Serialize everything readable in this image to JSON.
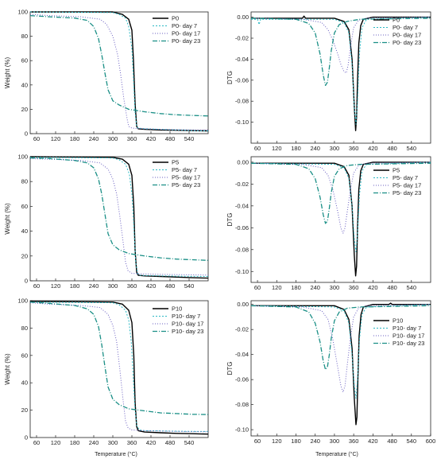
{
  "figure": {
    "x_axis_title": "Temperature (°C)"
  },
  "chart_data": [
    {
      "type": "line",
      "ylabel": "Weight (%)",
      "xlim": [
        40,
        600
      ],
      "ylim": [
        0,
        100
      ],
      "yticks": [
        "0",
        "20",
        "40",
        "60",
        "80",
        "100"
      ],
      "xticks": [
        "60",
        "120",
        "180",
        "240",
        "300",
        "360",
        "420",
        "480",
        "540"
      ],
      "series": [
        {
          "name": "P0",
          "x": [
            40,
            300,
            330,
            350,
            360,
            365,
            370,
            375,
            380,
            400,
            450,
            500,
            550,
            600
          ],
          "y": [
            100,
            100,
            98,
            94,
            85,
            60,
            25,
            6,
            4,
            3.5,
            3,
            2.8,
            2.5,
            2.3
          ]
        },
        {
          "name": "P0- day 7",
          "x": [
            40,
            300,
            320,
            340,
            350,
            360,
            365,
            370,
            375,
            380,
            400,
            450,
            500,
            550,
            600
          ],
          "y": [
            100,
            99.5,
            98,
            95,
            88,
            70,
            45,
            18,
            6,
            4.5,
            4,
            3.5,
            3,
            2.5,
            2.2
          ]
        },
        {
          "name": "P0- day 17",
          "x": [
            40,
            100,
            200,
            260,
            280,
            300,
            315,
            325,
            335,
            345,
            350,
            360,
            400,
            450,
            500,
            550,
            600
          ],
          "y": [
            98,
            97,
            96,
            94,
            90,
            80,
            65,
            48,
            28,
            12,
            6,
            4.5,
            4,
            3.5,
            3.3,
            3.1,
            3
          ]
        },
        {
          "name": "P0- day 23",
          "x": [
            40,
            100,
            180,
            220,
            240,
            255,
            265,
            275,
            285,
            300,
            320,
            350,
            400,
            450,
            500,
            550,
            600
          ],
          "y": [
            97,
            96,
            95,
            93,
            88,
            78,
            65,
            50,
            36,
            27,
            23.5,
            20,
            18,
            16.5,
            15.5,
            15,
            14.5
          ]
        }
      ]
    },
    {
      "type": "line",
      "ylabel": "DTG",
      "xlim": [
        40,
        600
      ],
      "ylim": [
        -0.12,
        0.005
      ],
      "yticks": [
        "0.00",
        "-0.02",
        "-0.04",
        "-0.06",
        "-0.08",
        "-0.10"
      ],
      "xticks": [
        "60",
        "120",
        "180",
        "240",
        "300",
        "360",
        "420",
        "480",
        "540"
      ],
      "series": [
        {
          "name": "P0",
          "x": [
            40,
            200,
            205,
            210,
            300,
            330,
            345,
            355,
            362,
            366,
            369,
            372,
            376,
            382,
            390,
            420,
            600
          ],
          "y": [
            -0.001,
            -0.001,
            0.001,
            -0.001,
            -0.001,
            -0.004,
            -0.012,
            -0.04,
            -0.085,
            -0.108,
            -0.095,
            -0.06,
            -0.025,
            -0.008,
            -0.002,
            0,
            0
          ]
        },
        {
          "name": "P0- day 7",
          "x": [
            40,
            60,
            65,
            70,
            300,
            330,
            345,
            355,
            362,
            367,
            372,
            378,
            386,
            400,
            600
          ],
          "y": [
            -0.002,
            -0.002,
            -0.007,
            -0.002,
            -0.002,
            -0.005,
            -0.015,
            -0.045,
            -0.085,
            -0.102,
            -0.08,
            -0.035,
            -0.01,
            -0.002,
            0
          ]
        },
        {
          "name": "P0- day 17",
          "x": [
            40,
            200,
            260,
            280,
            295,
            310,
            320,
            330,
            337,
            343,
            350,
            360,
            375,
            400,
            600
          ],
          "y": [
            -0.001,
            -0.002,
            -0.005,
            -0.012,
            -0.022,
            -0.035,
            -0.045,
            -0.052,
            -0.053,
            -0.045,
            -0.028,
            -0.01,
            -0.003,
            -0.001,
            0
          ]
        },
        {
          "name": "P0- day 23",
          "x": [
            40,
            180,
            220,
            240,
            255,
            265,
            272,
            278,
            284,
            290,
            300,
            315,
            340,
            380,
            600
          ],
          "y": [
            -0.001,
            -0.002,
            -0.006,
            -0.015,
            -0.035,
            -0.055,
            -0.065,
            -0.062,
            -0.048,
            -0.032,
            -0.015,
            -0.007,
            -0.004,
            -0.002,
            -0.001
          ]
        }
      ]
    },
    {
      "type": "line",
      "ylabel": "Weight (%)",
      "xlim": [
        40,
        600
      ],
      "ylim": [
        0,
        100
      ],
      "yticks": [
        "0",
        "20",
        "40",
        "60",
        "80",
        "100"
      ],
      "xticks": [
        "60",
        "120",
        "180",
        "240",
        "300",
        "360",
        "420",
        "480",
        "540"
      ],
      "series": [
        {
          "name": "P5",
          "x": [
            40,
            300,
            330,
            350,
            360,
            366,
            370,
            375,
            380,
            400,
            450,
            500,
            550,
            600
          ],
          "y": [
            100,
            99.5,
            98,
            94,
            85,
            60,
            25,
            7,
            4.5,
            4,
            3.5,
            3,
            2.5,
            2.2
          ]
        },
        {
          "name": "P5- day 7",
          "x": [
            40,
            300,
            320,
            340,
            352,
            360,
            366,
            372,
            378,
            385,
            400,
            450,
            500,
            550,
            600
          ],
          "y": [
            99.5,
            99,
            97.5,
            94,
            86,
            70,
            45,
            15,
            6,
            4.5,
            4.2,
            4,
            3.8,
            3.6,
            3.5
          ]
        },
        {
          "name": "P5- day 17",
          "x": [
            40,
            100,
            200,
            260,
            285,
            300,
            312,
            322,
            332,
            340,
            348,
            360,
            400,
            450,
            500,
            550,
            600
          ],
          "y": [
            98.5,
            98,
            97,
            95,
            90,
            82,
            70,
            52,
            32,
            15,
            8,
            6,
            5.5,
            5.2,
            5,
            4.8,
            4.6
          ]
        },
        {
          "name": "P5- day 23",
          "x": [
            40,
            100,
            180,
            220,
            240,
            255,
            265,
            275,
            285,
            300,
            320,
            350,
            400,
            450,
            500,
            550,
            600
          ],
          "y": [
            99,
            98.5,
            97,
            95,
            91,
            82,
            70,
            54,
            38,
            29,
            25,
            22,
            20,
            18.5,
            17.5,
            17,
            16.5
          ]
        }
      ]
    },
    {
      "type": "line",
      "ylabel": "DTG",
      "xlim": [
        40,
        600
      ],
      "ylim": [
        -0.11,
        0.005
      ],
      "yticks": [
        "0.00",
        "-0.02",
        "-0.04",
        "-0.06",
        "-0.08",
        "-0.10"
      ],
      "xticks": [
        "60",
        "120",
        "180",
        "240",
        "300",
        "360",
        "420",
        "480",
        "540"
      ],
      "series": [
        {
          "name": "P5",
          "x": [
            40,
            300,
            330,
            345,
            355,
            362,
            366,
            369,
            372,
            376,
            382,
            390,
            420,
            600
          ],
          "y": [
            -0.001,
            -0.001,
            -0.004,
            -0.012,
            -0.04,
            -0.085,
            -0.104,
            -0.095,
            -0.06,
            -0.025,
            -0.008,
            -0.002,
            0,
            0
          ]
        },
        {
          "name": "P5- day 7",
          "x": [
            40,
            300,
            330,
            345,
            355,
            362,
            367,
            372,
            378,
            386,
            400,
            600
          ],
          "y": [
            -0.001,
            -0.002,
            -0.005,
            -0.015,
            -0.04,
            -0.07,
            -0.082,
            -0.065,
            -0.03,
            -0.008,
            -0.002,
            0
          ]
        },
        {
          "name": "P5- day 17",
          "x": [
            40,
            200,
            260,
            280,
            295,
            310,
            320,
            327,
            333,
            340,
            350,
            360,
            375,
            400,
            600
          ],
          "y": [
            -0.001,
            -0.002,
            -0.005,
            -0.012,
            -0.025,
            -0.045,
            -0.06,
            -0.065,
            -0.06,
            -0.045,
            -0.025,
            -0.01,
            -0.003,
            -0.001,
            0
          ]
        },
        {
          "name": "P5- day 23",
          "x": [
            40,
            180,
            220,
            240,
            255,
            265,
            272,
            278,
            284,
            290,
            300,
            315,
            340,
            380,
            600
          ],
          "y": [
            -0.001,
            -0.002,
            -0.006,
            -0.015,
            -0.032,
            -0.048,
            -0.056,
            -0.054,
            -0.042,
            -0.028,
            -0.013,
            -0.006,
            -0.003,
            -0.002,
            -0.001
          ]
        }
      ]
    },
    {
      "type": "line",
      "ylabel": "Weight (%)",
      "xlim": [
        40,
        600
      ],
      "ylim": [
        0,
        100
      ],
      "yticks": [
        "0",
        "20",
        "40",
        "60",
        "80",
        "100"
      ],
      "xticks": [
        "60",
        "120",
        "180",
        "240",
        "300",
        "360",
        "420",
        "480",
        "540"
      ],
      "series": [
        {
          "name": "P10",
          "x": [
            40,
            300,
            330,
            350,
            360,
            366,
            370,
            375,
            380,
            400,
            450,
            500,
            550,
            600
          ],
          "y": [
            99.5,
            99,
            97.5,
            93,
            84,
            60,
            26,
            8,
            5,
            4,
            3.5,
            3,
            2.8,
            2.5
          ]
        },
        {
          "name": "P10- day 7",
          "x": [
            40,
            300,
            320,
            340,
            350,
            358,
            364,
            370,
            376,
            385,
            400,
            450,
            500,
            550,
            600
          ],
          "y": [
            99,
            98.5,
            97,
            93,
            86,
            70,
            45,
            20,
            8,
            5.5,
            5,
            4.8,
            4.6,
            4.5,
            4.4
          ]
        },
        {
          "name": "P10- day 17",
          "x": [
            40,
            100,
            200,
            260,
            285,
            300,
            312,
            322,
            332,
            340,
            348,
            360,
            400,
            450,
            500,
            550,
            600
          ],
          "y": [
            98.5,
            97.5,
            96.5,
            95,
            90,
            82,
            70,
            50,
            28,
            12,
            7,
            5.5,
            5,
            4.7,
            4.5,
            4.3,
            4.2
          ]
        },
        {
          "name": "P10- day 23",
          "x": [
            40,
            100,
            180,
            220,
            240,
            255,
            265,
            275,
            285,
            300,
            320,
            350,
            400,
            450,
            500,
            550,
            600
          ],
          "y": [
            99,
            98,
            96.5,
            94,
            90,
            81,
            68,
            52,
            37,
            28,
            24,
            21,
            19.5,
            18,
            17.5,
            17,
            16.8
          ]
        }
      ]
    },
    {
      "type": "line",
      "ylabel": "DTG",
      "xlim": [
        40,
        600
      ],
      "ylim": [
        -0.105,
        0.003
      ],
      "yticks": [
        "0.00",
        "-0.02",
        "-0.04",
        "-0.06",
        "-0.08",
        "-0.10"
      ],
      "xticks": [
        "60",
        "120",
        "180",
        "240",
        "300",
        "360",
        "420",
        "480",
        "540",
        "600"
      ],
      "series": [
        {
          "name": "P10",
          "x": [
            40,
            300,
            330,
            345,
            355,
            362,
            367,
            370,
            373,
            377,
            383,
            390,
            420,
            470,
            475,
            480,
            600
          ],
          "y": [
            -0.001,
            -0.001,
            -0.004,
            -0.012,
            -0.035,
            -0.075,
            -0.096,
            -0.09,
            -0.06,
            -0.025,
            -0.008,
            -0.002,
            0,
            0,
            0.001,
            0,
            0
          ]
        },
        {
          "name": "P10- day 7",
          "x": [
            40,
            300,
            330,
            345,
            355,
            362,
            367,
            372,
            378,
            386,
            400,
            600
          ],
          "y": [
            -0.001,
            -0.002,
            -0.005,
            -0.015,
            -0.04,
            -0.065,
            -0.075,
            -0.06,
            -0.028,
            -0.008,
            -0.002,
            0
          ]
        },
        {
          "name": "P10- day 17",
          "x": [
            40,
            200,
            260,
            280,
            295,
            310,
            320,
            327,
            333,
            340,
            350,
            360,
            375,
            400,
            600
          ],
          "y": [
            -0.001,
            -0.002,
            -0.005,
            -0.012,
            -0.028,
            -0.05,
            -0.065,
            -0.07,
            -0.065,
            -0.048,
            -0.026,
            -0.01,
            -0.003,
            -0.001,
            0
          ]
        },
        {
          "name": "P10- day 23",
          "x": [
            40,
            180,
            220,
            240,
            255,
            265,
            272,
            278,
            284,
            290,
            300,
            315,
            340,
            380,
            600
          ],
          "y": [
            -0.001,
            -0.002,
            -0.006,
            -0.015,
            -0.03,
            -0.045,
            -0.052,
            -0.05,
            -0.04,
            -0.027,
            -0.013,
            -0.006,
            -0.003,
            -0.002,
            -0.001
          ]
        }
      ]
    }
  ],
  "styles": {
    "colors": [
      "#000000",
      "#2bb9c4",
      "#6a5fc1",
      "#1a8f86"
    ],
    "dashes": [
      "",
      "2,2",
      "1,2",
      "6,2,1,2"
    ],
    "widths": [
      1.4,
      1.0,
      1.0,
      1.3
    ]
  }
}
